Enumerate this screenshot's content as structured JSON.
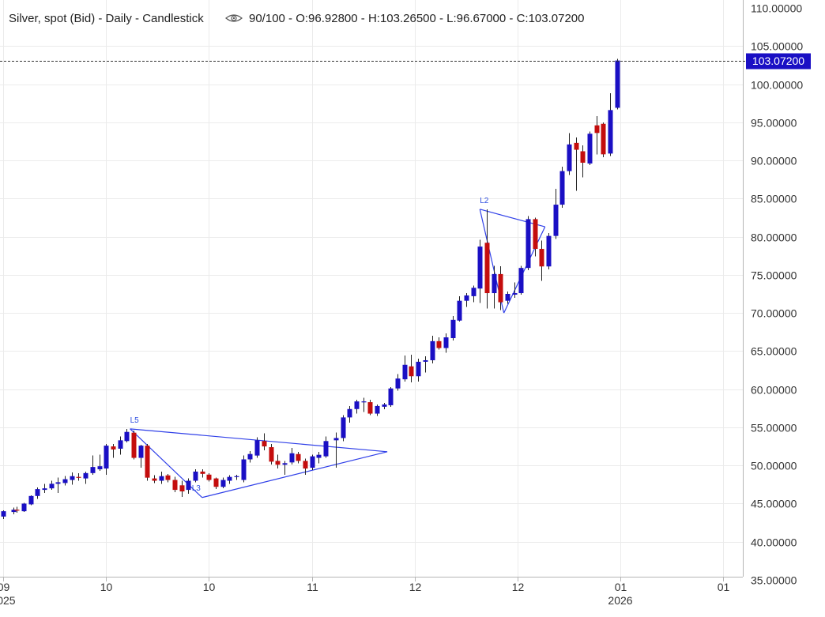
{
  "header": {
    "title_prefix": "Silver, spot (Bid) - Daily - Candlestick",
    "title_suffix": "90/100 - O:96.92800 - H:103.26500 - L:96.67000 - C:103.07200",
    "eye_icon": "eye-icon"
  },
  "colors": {
    "up": "#1a0fc4",
    "down": "#c40d0d",
    "wick": "#222222",
    "last_price_tag": "#1a0fc4",
    "pattern": "#3040e8"
  },
  "last_price": {
    "value": 103.072,
    "label": "103.07200"
  },
  "x_axis": {
    "ticks": [
      {
        "label": "09",
        "day": 1
      },
      {
        "label": "10",
        "day": 31
      },
      {
        "label": "10",
        "day": 61
      },
      {
        "label": "11",
        "day": 91
      },
      {
        "label": "12",
        "day": 121
      },
      {
        "label": "12",
        "day": 151
      },
      {
        "label": "01",
        "day": 181
      },
      {
        "label": "01",
        "day": 211
      }
    ],
    "years": [
      {
        "label": "2025",
        "day": 1
      },
      {
        "label": "2026",
        "day": 181
      }
    ]
  },
  "chart_data": {
    "type": "candlestick",
    "title": "Silver, spot (Bid) - Daily - Candlestick",
    "ylim": [
      35,
      110
    ],
    "y_ticks": [
      "35.00000",
      "40.00000",
      "45.00000",
      "50.00000",
      "55.00000",
      "60.00000",
      "65.00000",
      "70.00000",
      "75.00000",
      "80.00000",
      "85.00000",
      "90.00000",
      "95.00000",
      "100.00000",
      "105.00000",
      "110.00000"
    ],
    "grid": true,
    "x_unit": "day index",
    "candles": [
      {
        "x": 1,
        "o": 43.3,
        "h": 44.1,
        "l": 43.0,
        "c": 44.0
      },
      {
        "x": 4,
        "o": 43.9,
        "h": 44.5,
        "l": 43.6,
        "c": 44.2
      },
      {
        "x": 5,
        "o": 44.2,
        "h": 44.6,
        "l": 43.8,
        "c": 44.1
      },
      {
        "x": 7,
        "o": 44.0,
        "h": 45.1,
        "l": 43.9,
        "c": 45.0
      },
      {
        "x": 9,
        "o": 44.9,
        "h": 46.1,
        "l": 44.8,
        "c": 46.0
      },
      {
        "x": 11,
        "o": 46.0,
        "h": 47.1,
        "l": 45.6,
        "c": 46.9
      },
      {
        "x": 13,
        "o": 46.8,
        "h": 47.6,
        "l": 46.4,
        "c": 47.0
      },
      {
        "x": 15,
        "o": 47.0,
        "h": 48.0,
        "l": 46.8,
        "c": 47.6
      },
      {
        "x": 17,
        "o": 47.6,
        "h": 48.4,
        "l": 46.4,
        "c": 47.8
      },
      {
        "x": 19,
        "o": 47.7,
        "h": 48.6,
        "l": 47.4,
        "c": 48.2
      },
      {
        "x": 21,
        "o": 48.1,
        "h": 49.1,
        "l": 47.5,
        "c": 48.6
      },
      {
        "x": 23,
        "o": 48.5,
        "h": 49.0,
        "l": 48.0,
        "c": 48.4
      },
      {
        "x": 25,
        "o": 48.3,
        "h": 49.2,
        "l": 47.6,
        "c": 49.0
      },
      {
        "x": 27,
        "o": 49.0,
        "h": 51.3,
        "l": 48.8,
        "c": 49.8
      },
      {
        "x": 29,
        "o": 49.5,
        "h": 51.4,
        "l": 49.3,
        "c": 49.9
      },
      {
        "x": 31,
        "o": 49.6,
        "h": 52.8,
        "l": 48.8,
        "c": 52.6
      },
      {
        "x": 33,
        "o": 52.5,
        "h": 52.8,
        "l": 51.0,
        "c": 52.1
      },
      {
        "x": 35,
        "o": 52.2,
        "h": 53.8,
        "l": 51.4,
        "c": 53.3
      },
      {
        "x": 37,
        "o": 53.2,
        "h": 54.8,
        "l": 53.0,
        "c": 54.4
      },
      {
        "x": 39,
        "o": 54.3,
        "h": 54.6,
        "l": 50.8,
        "c": 51.0
      },
      {
        "x": 41,
        "o": 51.0,
        "h": 52.7,
        "l": 49.7,
        "c": 52.6
      },
      {
        "x": 43,
        "o": 52.6,
        "h": 52.8,
        "l": 48.0,
        "c": 48.4
      },
      {
        "x": 45,
        "o": 48.3,
        "h": 48.7,
        "l": 47.7,
        "c": 48.0
      },
      {
        "x": 47,
        "o": 48.0,
        "h": 49.2,
        "l": 47.6,
        "c": 48.6
      },
      {
        "x": 49,
        "o": 48.7,
        "h": 48.9,
        "l": 47.8,
        "c": 48.1
      },
      {
        "x": 51,
        "o": 48.1,
        "h": 48.5,
        "l": 46.5,
        "c": 46.8
      },
      {
        "x": 53,
        "o": 47.4,
        "h": 48.0,
        "l": 45.9,
        "c": 46.6
      },
      {
        "x": 55,
        "o": 46.8,
        "h": 48.3,
        "l": 46.3,
        "c": 48.0
      },
      {
        "x": 57,
        "o": 48.0,
        "h": 49.5,
        "l": 47.8,
        "c": 49.2
      },
      {
        "x": 59,
        "o": 49.2,
        "h": 49.5,
        "l": 48.4,
        "c": 48.9
      },
      {
        "x": 61,
        "o": 48.8,
        "h": 49.0,
        "l": 47.9,
        "c": 48.1
      },
      {
        "x": 63,
        "o": 48.3,
        "h": 48.4,
        "l": 46.9,
        "c": 47.2
      },
      {
        "x": 65,
        "o": 47.2,
        "h": 48.4,
        "l": 47.0,
        "c": 48.1
      },
      {
        "x": 67,
        "o": 48.0,
        "h": 48.7,
        "l": 47.6,
        "c": 48.5
      },
      {
        "x": 69,
        "o": 48.5,
        "h": 48.8,
        "l": 48.1,
        "c": 48.6
      },
      {
        "x": 71,
        "o": 48.1,
        "h": 51.3,
        "l": 47.8,
        "c": 50.8
      },
      {
        "x": 73,
        "o": 50.8,
        "h": 51.9,
        "l": 50.4,
        "c": 51.5
      },
      {
        "x": 75,
        "o": 51.3,
        "h": 53.7,
        "l": 51.0,
        "c": 53.3
      },
      {
        "x": 77,
        "o": 53.2,
        "h": 54.2,
        "l": 52.0,
        "c": 52.5
      },
      {
        "x": 79,
        "o": 52.4,
        "h": 52.8,
        "l": 50.1,
        "c": 50.5
      },
      {
        "x": 81,
        "o": 50.6,
        "h": 51.4,
        "l": 49.6,
        "c": 50.1
      },
      {
        "x": 83,
        "o": 50.1,
        "h": 50.6,
        "l": 48.8,
        "c": 50.3
      },
      {
        "x": 85,
        "o": 50.4,
        "h": 52.3,
        "l": 50.1,
        "c": 51.6
      },
      {
        "x": 87,
        "o": 51.5,
        "h": 51.8,
        "l": 50.3,
        "c": 50.6
      },
      {
        "x": 89,
        "o": 50.6,
        "h": 50.9,
        "l": 48.8,
        "c": 49.6
      },
      {
        "x": 91,
        "o": 49.7,
        "h": 51.4,
        "l": 49.4,
        "c": 51.2
      },
      {
        "x": 93,
        "o": 51.0,
        "h": 51.8,
        "l": 50.3,
        "c": 51.4
      },
      {
        "x": 95,
        "o": 51.2,
        "h": 53.8,
        "l": 51.0,
        "c": 53.2
      },
      {
        "x": 98,
        "o": 53.3,
        "h": 54.3,
        "l": 49.7,
        "c": 53.6
      },
      {
        "x": 100,
        "o": 53.6,
        "h": 56.6,
        "l": 53.2,
        "c": 56.3
      },
      {
        "x": 102,
        "o": 56.3,
        "h": 57.8,
        "l": 55.6,
        "c": 57.4
      },
      {
        "x": 104,
        "o": 57.4,
        "h": 58.6,
        "l": 56.8,
        "c": 58.4
      },
      {
        "x": 106,
        "o": 58.3,
        "h": 58.9,
        "l": 57.0,
        "c": 58.4
      },
      {
        "x": 108,
        "o": 58.3,
        "h": 58.6,
        "l": 56.6,
        "c": 56.8
      },
      {
        "x": 110,
        "o": 56.8,
        "h": 58.0,
        "l": 56.5,
        "c": 57.8
      },
      {
        "x": 112,
        "o": 57.7,
        "h": 58.2,
        "l": 57.4,
        "c": 58.0
      },
      {
        "x": 114,
        "o": 57.9,
        "h": 60.3,
        "l": 57.7,
        "c": 60.1
      },
      {
        "x": 116,
        "o": 60.1,
        "h": 62.0,
        "l": 59.8,
        "c": 61.4
      },
      {
        "x": 118,
        "o": 61.3,
        "h": 64.4,
        "l": 61.0,
        "c": 63.2
      },
      {
        "x": 120,
        "o": 63.0,
        "h": 64.5,
        "l": 60.9,
        "c": 61.7
      },
      {
        "x": 122,
        "o": 61.7,
        "h": 64.0,
        "l": 61.0,
        "c": 63.6
      },
      {
        "x": 124,
        "o": 63.6,
        "h": 64.3,
        "l": 62.2,
        "c": 63.8
      },
      {
        "x": 126,
        "o": 63.8,
        "h": 67.0,
        "l": 63.4,
        "c": 66.3
      },
      {
        "x": 128,
        "o": 66.3,
        "h": 66.8,
        "l": 65.2,
        "c": 65.4
      },
      {
        "x": 130,
        "o": 65.4,
        "h": 67.3,
        "l": 64.8,
        "c": 66.8
      },
      {
        "x": 132,
        "o": 66.7,
        "h": 69.6,
        "l": 66.4,
        "c": 69.1
      },
      {
        "x": 134,
        "o": 69.0,
        "h": 72.2,
        "l": 68.9,
        "c": 71.6
      },
      {
        "x": 136,
        "o": 71.6,
        "h": 72.6,
        "l": 70.8,
        "c": 72.3
      },
      {
        "x": 138,
        "o": 72.2,
        "h": 73.6,
        "l": 71.4,
        "c": 73.3
      },
      {
        "x": 140,
        "o": 73.2,
        "h": 79.6,
        "l": 71.3,
        "c": 78.7
      },
      {
        "x": 142,
        "o": 79.2,
        "h": 83.6,
        "l": 70.6,
        "c": 72.6
      },
      {
        "x": 144,
        "o": 72.6,
        "h": 76.2,
        "l": 70.6,
        "c": 75.1
      },
      {
        "x": 146,
        "o": 75.1,
        "h": 76.1,
        "l": 70.4,
        "c": 71.4
      },
      {
        "x": 148,
        "o": 71.6,
        "h": 72.8,
        "l": 71.2,
        "c": 72.5
      },
      {
        "x": 150,
        "o": 72.4,
        "h": 74.0,
        "l": 72.0,
        "c": 72.6
      },
      {
        "x": 152,
        "o": 72.6,
        "h": 76.2,
        "l": 72.4,
        "c": 75.9
      },
      {
        "x": 154,
        "o": 75.9,
        "h": 82.7,
        "l": 75.6,
        "c": 82.3
      },
      {
        "x": 156,
        "o": 82.3,
        "h": 82.5,
        "l": 77.4,
        "c": 78.4
      },
      {
        "x": 158,
        "o": 78.4,
        "h": 79.5,
        "l": 74.2,
        "c": 76.1
      },
      {
        "x": 160,
        "o": 76.1,
        "h": 80.5,
        "l": 75.7,
        "c": 80.1
      },
      {
        "x": 162,
        "o": 80.1,
        "h": 86.3,
        "l": 79.7,
        "c": 84.2
      },
      {
        "x": 164,
        "o": 84.2,
        "h": 89.2,
        "l": 83.8,
        "c": 88.6
      },
      {
        "x": 166,
        "o": 88.6,
        "h": 93.6,
        "l": 88.1,
        "c": 92.1
      },
      {
        "x": 168,
        "o": 92.3,
        "h": 93.0,
        "l": 86.0,
        "c": 91.4
      },
      {
        "x": 170,
        "o": 91.2,
        "h": 92.0,
        "l": 87.8,
        "c": 89.7
      },
      {
        "x": 172,
        "o": 89.6,
        "h": 93.8,
        "l": 89.4,
        "c": 93.5
      },
      {
        "x": 174,
        "o": 94.6,
        "h": 95.8,
        "l": 90.8,
        "c": 93.6
      },
      {
        "x": 176,
        "o": 94.8,
        "h": 95.0,
        "l": 90.4,
        "c": 90.8
      },
      {
        "x": 178,
        "o": 90.9,
        "h": 98.8,
        "l": 90.6,
        "c": 96.6
      },
      {
        "x": 180,
        "o": 96.9,
        "h": 103.3,
        "l": 96.7,
        "c": 103.1
      }
    ],
    "patterns": [
      {
        "name": "L5",
        "lines": [
          [
            [
              38,
              54.8
            ],
            [
              59,
              45.8
            ]
          ],
          [
            [
              38,
              54.8
            ],
            [
              113,
              51.8
            ]
          ],
          [
            [
              59,
              45.8
            ],
            [
              113,
              51.8
            ]
          ]
        ],
        "label_at": [
          38,
          55.2
        ]
      },
      {
        "name": "L3",
        "lines": [],
        "label_at": [
          56,
          46.3
        ]
      },
      {
        "name": "L2",
        "lines": [
          [
            [
              140,
              83.6
            ],
            [
              147,
              70.0
            ]
          ],
          [
            [
              140,
              83.6
            ],
            [
              159,
              81.3
            ]
          ],
          [
            [
              147,
              70.0
            ],
            [
              159,
              81.3
            ]
          ]
        ],
        "label_at": [
          140,
          84.0
        ]
      }
    ]
  }
}
